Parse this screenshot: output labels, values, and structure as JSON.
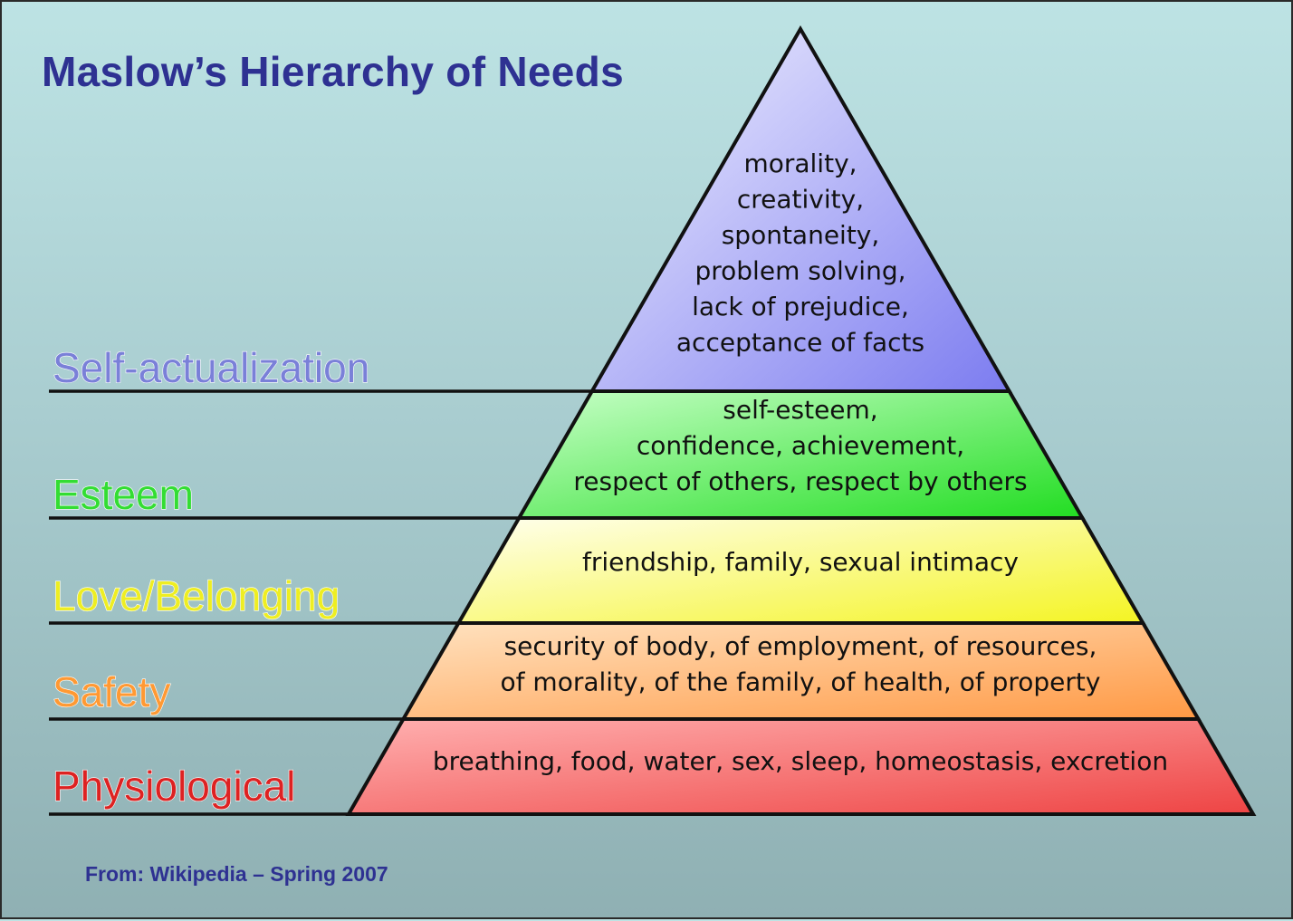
{
  "title": "Maslow’s Hierarchy of Needs",
  "source": "From: Wikipedia – Spring 2007",
  "levels": [
    {
      "name": "Self-actualization",
      "label_color": "#7a80d8",
      "fill_light": "#f3f3ff",
      "fill_dark": "#7c7cf0",
      "needs": [
        "morality,",
        "creativity,",
        "spontaneity,",
        "problem solving,",
        "lack of prejudice,",
        "acceptance of facts"
      ]
    },
    {
      "name": "Esteem",
      "label_color": "#33dd33",
      "fill_light": "#c8ffc8",
      "fill_dark": "#22dd22",
      "needs": [
        "self-esteem,",
        "confidence, achievement,",
        "respect of others, respect by others"
      ]
    },
    {
      "name": "Love/Belonging",
      "label_color": "#eeee22",
      "fill_light": "#fffff0",
      "fill_dark": "#f4f422",
      "needs": [
        "friendship, family, sexual intimacy"
      ]
    },
    {
      "name": "Safety",
      "label_color": "#ff9933",
      "fill_light": "#ffe2c0",
      "fill_dark": "#ff9944",
      "needs": [
        "security of body, of employment, of resources,",
        "of morality, of the family, of health, of property"
      ]
    },
    {
      "name": "Physiological",
      "label_color": "#dd2222",
      "fill_light": "#ffb0b0",
      "fill_dark": "#ee4444",
      "needs": [
        "breathing, food, water, sex, sleep, homeostasis, excretion"
      ]
    }
  ]
}
